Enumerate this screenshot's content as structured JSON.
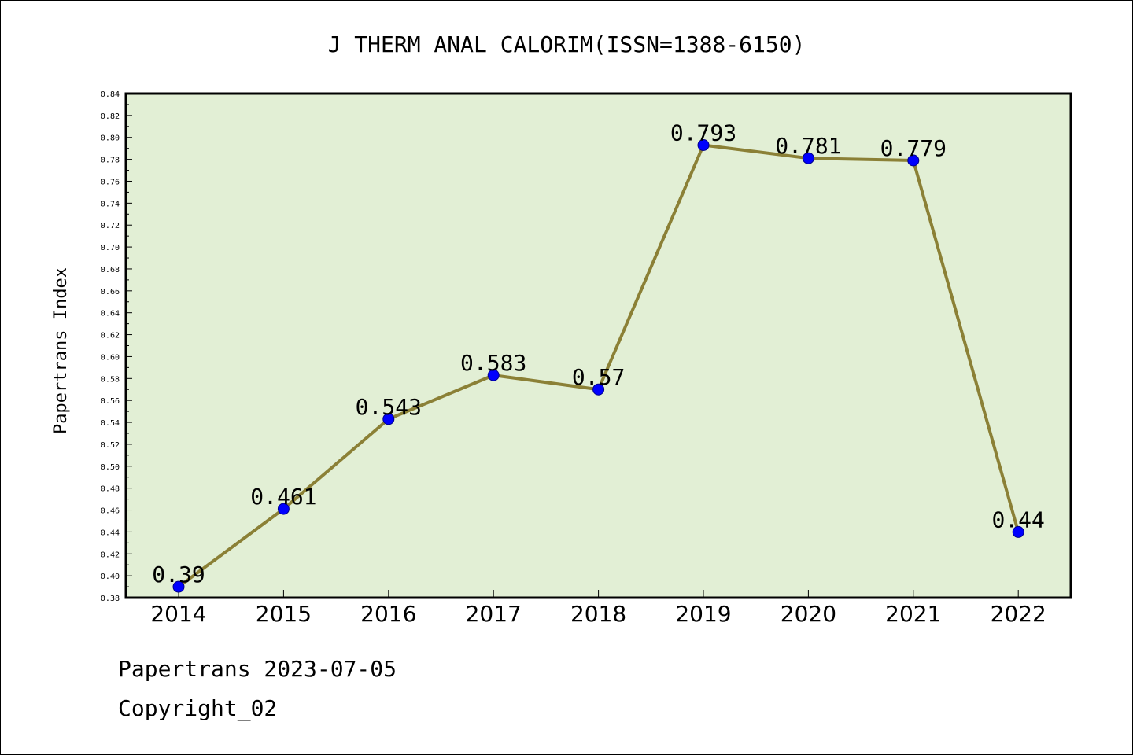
{
  "chart_data": {
    "type": "line",
    "title": "J THERM ANAL CALORIM(ISSN=1388-6150)",
    "xlabel": "",
    "ylabel": "Papertrans Index",
    "categories": [
      "2014",
      "2015",
      "2016",
      "2017",
      "2018",
      "2019",
      "2020",
      "2021",
      "2022"
    ],
    "values": [
      0.39,
      0.461,
      0.543,
      0.583,
      0.57,
      0.793,
      0.781,
      0.779,
      0.44
    ],
    "data_labels": [
      "0.39",
      "0.461",
      "0.543",
      "0.583",
      "0.57",
      "0.793",
      "0.781",
      "0.779",
      "0.44"
    ],
    "ylim": [
      0.38,
      0.84
    ],
    "yticks": [
      "0.38",
      "0.40",
      "0.42",
      "0.44",
      "0.46",
      "0.48",
      "0.50",
      "0.52",
      "0.54",
      "0.56",
      "0.58",
      "0.60",
      "0.62",
      "0.64",
      "0.66",
      "0.68",
      "0.70",
      "0.72",
      "0.74",
      "0.76",
      "0.78",
      "0.80",
      "0.82",
      "0.84"
    ],
    "grid": false,
    "legend": "none",
    "colors": {
      "line": "#8b8036",
      "marker": "#0000ff",
      "plot_background": "#e2efd5",
      "axis": "#000000"
    }
  },
  "footer": {
    "date_text": "Papertrans 2023-07-05",
    "copyright_text": "Copyright_02"
  }
}
